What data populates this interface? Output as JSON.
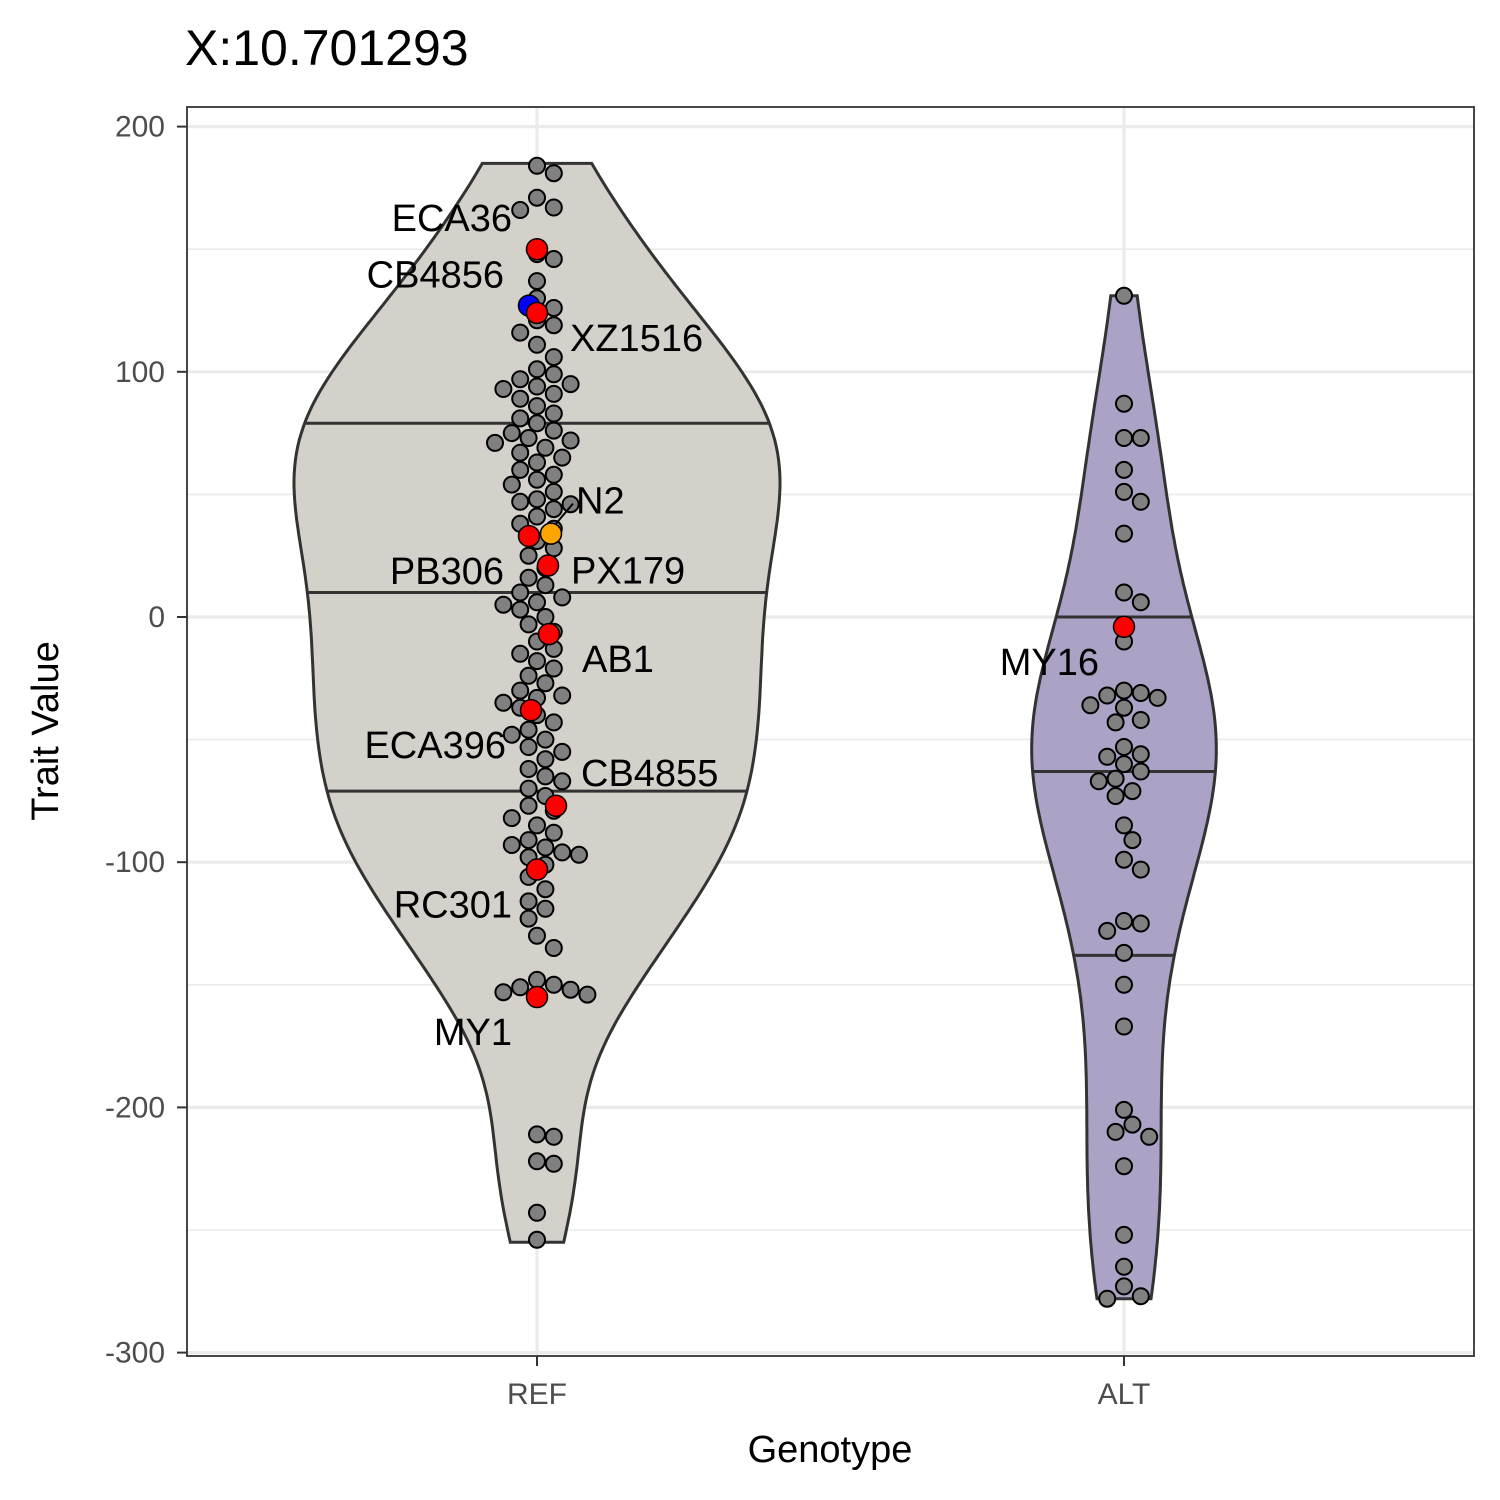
{
  "chart_data": {
    "type": "violin",
    "title": "X:10.701293",
    "xlabel": "Genotype",
    "ylabel": "Trait Value",
    "ylim": [
      -300,
      200
    ],
    "yticks": [
      200,
      100,
      0,
      -100,
      -200,
      -300
    ],
    "ytick_labels": [
      "200",
      "100",
      "0",
      "-100",
      "-200",
      "-300"
    ],
    "categories": [
      "REF",
      "ALT"
    ],
    "grid": true,
    "colors": {
      "REF_fill": "#d4d0ca",
      "ALT_fill": "#aca2c6",
      "outline": "#333333",
      "point": "#808080",
      "highlight": "#ff0000",
      "reference_strain": "#0000ff",
      "lab_strain": "#ffa500"
    },
    "groups": [
      {
        "name": "REF",
        "range": [
          -255,
          185
        ],
        "quantiles": [
          79,
          10,
          -71
        ],
        "values": [
          184,
          181,
          171,
          167,
          166,
          148,
          146,
          137,
          130,
          126,
          121,
          119,
          116,
          111,
          106,
          101,
          99,
          97,
          95,
          94,
          93,
          91,
          89,
          86,
          83,
          81,
          79,
          76,
          75,
          73,
          72,
          71,
          69,
          67,
          65,
          63,
          60,
          58,
          56,
          54,
          51,
          48,
          47,
          46,
          44,
          41,
          38,
          36,
          31,
          28,
          25,
          20,
          16,
          13,
          10,
          8,
          6,
          5,
          3,
          0,
          -3,
          -6,
          -10,
          -13,
          -15,
          -18,
          -21,
          -24,
          -27,
          -30,
          -32,
          -33,
          -35,
          -37,
          -40,
          -43,
          -46,
          -48,
          -50,
          -53,
          -55,
          -58,
          -62,
          -65,
          -67,
          -70,
          -73,
          -77,
          -79,
          -82,
          -85,
          -88,
          -91,
          -93,
          -94,
          -96,
          -97,
          -98,
          -101,
          -106,
          -111,
          -116,
          -119,
          -123,
          -130,
          -135,
          -148,
          -150,
          -151,
          -152,
          -153,
          -154,
          -211,
          -212,
          -222,
          -223,
          -243,
          -254
        ],
        "highlighted": [
          {
            "label": "ECA36",
            "value": 150
          },
          {
            "label": "XZ1516",
            "value": 124
          },
          {
            "label": "PB306",
            "value": 33
          },
          {
            "label": "PX179",
            "value": 21
          },
          {
            "label": "AB1",
            "value": -7
          },
          {
            "label": "ECA396",
            "value": -38
          },
          {
            "label": "CB4855",
            "value": -77
          },
          {
            "label": "RC301",
            "value": -103
          },
          {
            "label": "MY1",
            "value": -155
          }
        ],
        "reference_strain": {
          "label": "CB4856",
          "value": 127
        },
        "lab_strain": {
          "label": "N2",
          "value": 34
        }
      },
      {
        "name": "ALT",
        "range": [
          -278,
          131
        ],
        "quantiles": [
          0,
          -63,
          -138
        ],
        "values": [
          131,
          87,
          73,
          73,
          60,
          51,
          47,
          34,
          10,
          6,
          -10,
          -30,
          -31,
          -32,
          -33,
          -36,
          -37,
          -42,
          -43,
          -53,
          -56,
          -57,
          -60,
          -63,
          -66,
          -67,
          -71,
          -73,
          -85,
          -91,
          -99,
          -103,
          -124,
          -125,
          -128,
          -137,
          -150,
          -167,
          -201,
          -207,
          -210,
          -212,
          -224,
          -252,
          -265,
          -273,
          -277,
          -278
        ],
        "highlighted": [
          {
            "label": "MY16",
            "value": -4
          }
        ]
      }
    ]
  }
}
